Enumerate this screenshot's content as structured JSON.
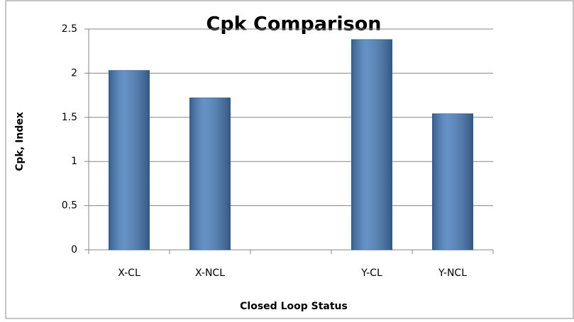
{
  "chart_data": {
    "type": "bar",
    "title": "Cpk Comparison",
    "x_label": "Closed Loop Status",
    "y_label": "Cpk, Index",
    "categories": [
      "X-CL",
      "X-NCL",
      null,
      "Y-CL",
      "Y-NCL"
    ],
    "values": [
      2.03,
      1.72,
      null,
      2.38,
      1.54
    ],
    "color": "#4a7ebb",
    "ylim": [
      0,
      2.5
    ],
    "yticks": [
      0,
      0.5,
      1,
      1.5,
      2,
      2.5
    ],
    "grid": true
  }
}
